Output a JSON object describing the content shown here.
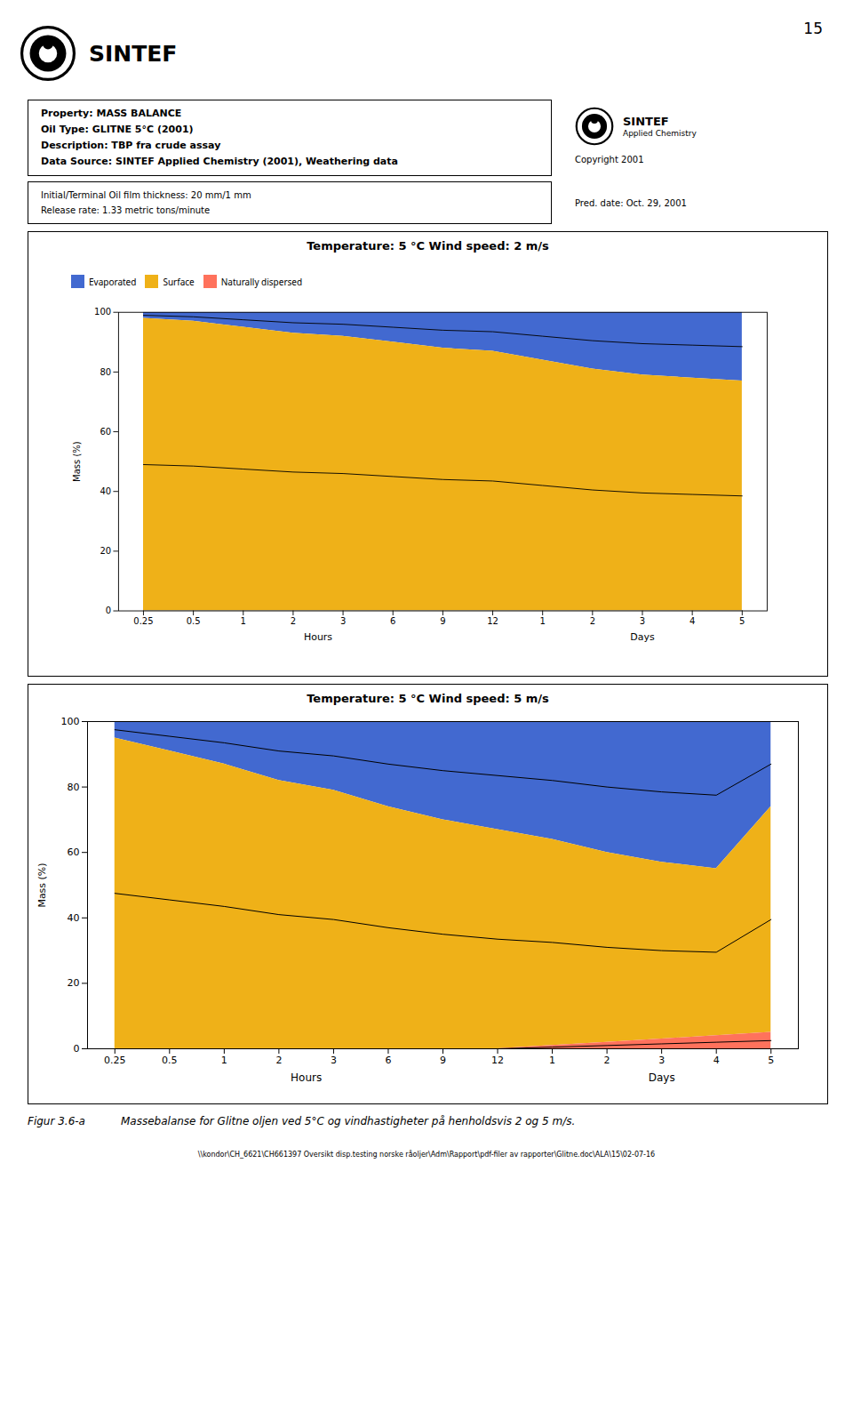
{
  "page": {
    "number": "15",
    "logo": "SINTEF",
    "property_box": [
      "Property: MASS BALANCE",
      "Oil Type: GLITNE 5°C (2001)",
      "Description: TBP fra crude assay",
      "Data Source: SINTEF Applied Chemistry (2001), Weathering data"
    ],
    "organization": [
      "SINTEF",
      "Applied Chemistry"
    ],
    "copyright": "Copyright 2001",
    "params_box": [
      "Initial/Terminal Oil film thickness: 20 mm/1 mm",
      "Release rate: 1.33 metric tons/minute"
    ],
    "pred_date": "Pred. date: Oct. 29, 2001",
    "caption": [
      "Figur 3.6-a",
      "Massebalanse for Glitne oljen ved 5°C og vindhastigheter på henholdsvis 2 og 5 m/s."
    ],
    "footer": "\\\\kondor\\CH_6621\\CH661397 Oversikt disp.testing norske råoljer\\Adm\\Rapport\\pdf-filer av rapporter\\Glitne.doc\\ALA\\15\\02-07-16"
  },
  "chart_data": [
    {
      "type": "area",
      "stacked": true,
      "legend": "top",
      "title": "Temperature: 5 °C   Wind speed: 2 m/s",
      "y_label": "Mass (%)",
      "categories": [
        "0.25",
        "0.5",
        "1",
        "2",
        "3",
        "6",
        "9",
        "12",
        "1",
        "2",
        "3",
        "4",
        "5"
      ],
      "series": [
        {
          "name": "Evaporated",
          "values": [
            2,
            3,
            5,
            7,
            8,
            10,
            12,
            13,
            16,
            19,
            21,
            22,
            23
          ]
        },
        {
          "name": "Surface",
          "values": [
            98,
            97,
            95,
            93,
            92,
            90,
            88,
            87,
            84,
            81,
            79,
            78,
            77
          ]
        },
        {
          "name": "Naturally dispersed",
          "values": [
            0,
            0,
            0,
            0,
            0,
            0,
            0,
            0,
            0,
            0,
            0,
            0,
            0
          ]
        }
      ],
      "ylim": [
        0,
        100
      ],
      "yticks": [
        0,
        20,
        40,
        60,
        80,
        100
      ],
      "annotations": [
        {
          "text": "Hours",
          "x": 3.5
        },
        {
          "text": "Days",
          "x": 10
        }
      ]
    },
    {
      "type": "area",
      "stacked": true,
      "title": "Temperature: 5 °C   Wind speed: 5 m/s",
      "y_label": "Mass (%)",
      "categories": [
        "0.25",
        "0.5",
        "1",
        "2",
        "3",
        "6",
        "9",
        "12",
        "1",
        "2",
        "3",
        "4",
        "5"
      ],
      "series": [
        {
          "name": "Evaporated",
          "values": [
            5,
            9,
            13,
            18,
            21,
            26,
            30,
            33,
            36,
            40,
            43,
            45,
            26
          ]
        },
        {
          "name": "Surface",
          "values": [
            95,
            91,
            87,
            82,
            79,
            74,
            70,
            67,
            63,
            58,
            54,
            51,
            69
          ]
        },
        {
          "name": "Naturally dispersed",
          "values": [
            0,
            0,
            0,
            0,
            0,
            0,
            0,
            0,
            1,
            2,
            3,
            4,
            5
          ]
        }
      ],
      "ylim": [
        0,
        100
      ],
      "yticks": [
        0,
        20,
        40,
        60,
        80,
        100
      ],
      "annotations": [
        {
          "text": "Hours",
          "x": 3.5
        },
        {
          "text": "Days",
          "x": 10
        }
      ]
    }
  ]
}
